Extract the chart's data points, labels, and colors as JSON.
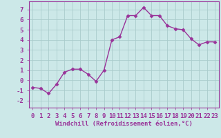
{
  "x": [
    0,
    1,
    2,
    3,
    4,
    5,
    6,
    7,
    8,
    9,
    10,
    11,
    12,
    13,
    14,
    15,
    16,
    17,
    18,
    19,
    20,
    21,
    22,
    23
  ],
  "y": [
    -0.7,
    -0.8,
    -1.3,
    -0.4,
    0.8,
    1.1,
    1.1,
    0.6,
    -0.1,
    1.0,
    4.0,
    4.3,
    6.4,
    6.4,
    7.2,
    6.4,
    6.4,
    5.4,
    5.1,
    5.0,
    4.1,
    3.5,
    3.8,
    3.8
  ],
  "line_color": "#993399",
  "marker": "D",
  "markersize": 2.5,
  "linewidth": 1.0,
  "xlabel": "Windchill (Refroidissement éolien,°C)",
  "xlabel_fontsize": 6.5,
  "xlim": [
    -0.5,
    23.5
  ],
  "ylim": [
    -2.7,
    7.8
  ],
  "xticks": [
    0,
    1,
    2,
    3,
    4,
    5,
    6,
    7,
    8,
    9,
    10,
    11,
    12,
    13,
    14,
    15,
    16,
    17,
    18,
    19,
    20,
    21,
    22,
    23
  ],
  "yticks": [
    -2,
    -1,
    0,
    1,
    2,
    3,
    4,
    5,
    6,
    7
  ],
  "tick_fontsize": 6.5,
  "background_color": "#cce8e8",
  "grid_color": "#aacccc",
  "grid_linewidth": 0.6,
  "spine_color": "#993399",
  "tick_color": "#993399",
  "label_color": "#993399"
}
